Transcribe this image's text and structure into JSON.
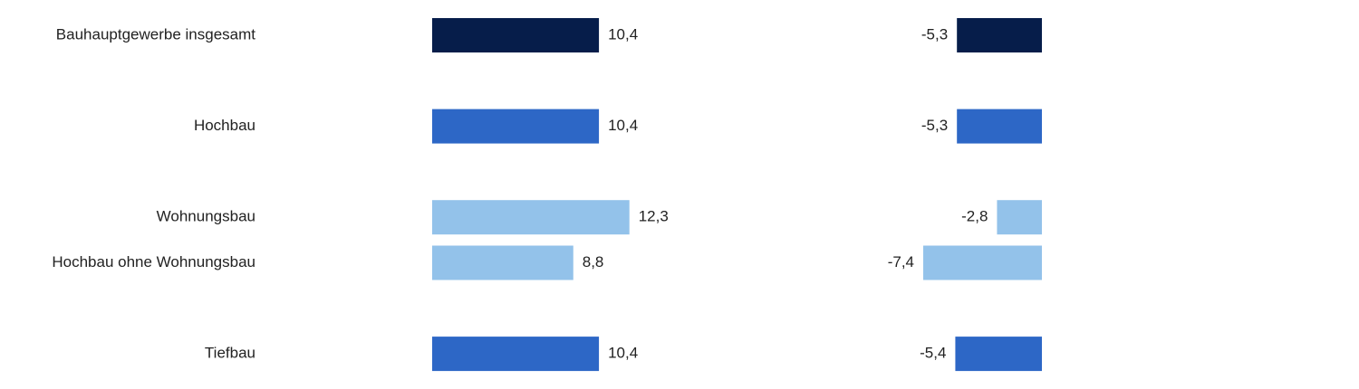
{
  "chart_data": [
    {
      "type": "bar",
      "orientation": "horizontal",
      "categories": [
        "Bauhauptgewerbe insgesamt",
        null,
        "Hochbau",
        null,
        "Wohnungsbau",
        "Hochbau ohne Wohnungsbau",
        null,
        "Tiefbau"
      ],
      "values": [
        10.4,
        null,
        10.4,
        null,
        12.3,
        8.8,
        null,
        10.4
      ],
      "value_labels": [
        "10,4",
        null,
        "10,4",
        null,
        "12,3",
        "8,8",
        null,
        "10,4"
      ],
      "colors": [
        "#061d4a",
        null,
        "#2d67c6",
        null,
        "#93c2ea",
        "#93c2ea",
        null,
        "#2d67c6"
      ],
      "xlim": [
        0,
        20
      ]
    },
    {
      "type": "bar",
      "orientation": "horizontal",
      "values": [
        -5.3,
        null,
        -5.3,
        null,
        -2.8,
        -7.4,
        null,
        -5.4
      ],
      "value_labels": [
        "-5,3",
        null,
        "-5,3",
        null,
        "-2,8",
        "-7,4",
        null,
        "-5,4"
      ],
      "colors": [
        "#061d4a",
        null,
        "#2d67c6",
        null,
        "#93c2ea",
        "#93c2ea",
        null,
        "#2d67c6"
      ],
      "xlim": [
        -10,
        0
      ]
    }
  ]
}
